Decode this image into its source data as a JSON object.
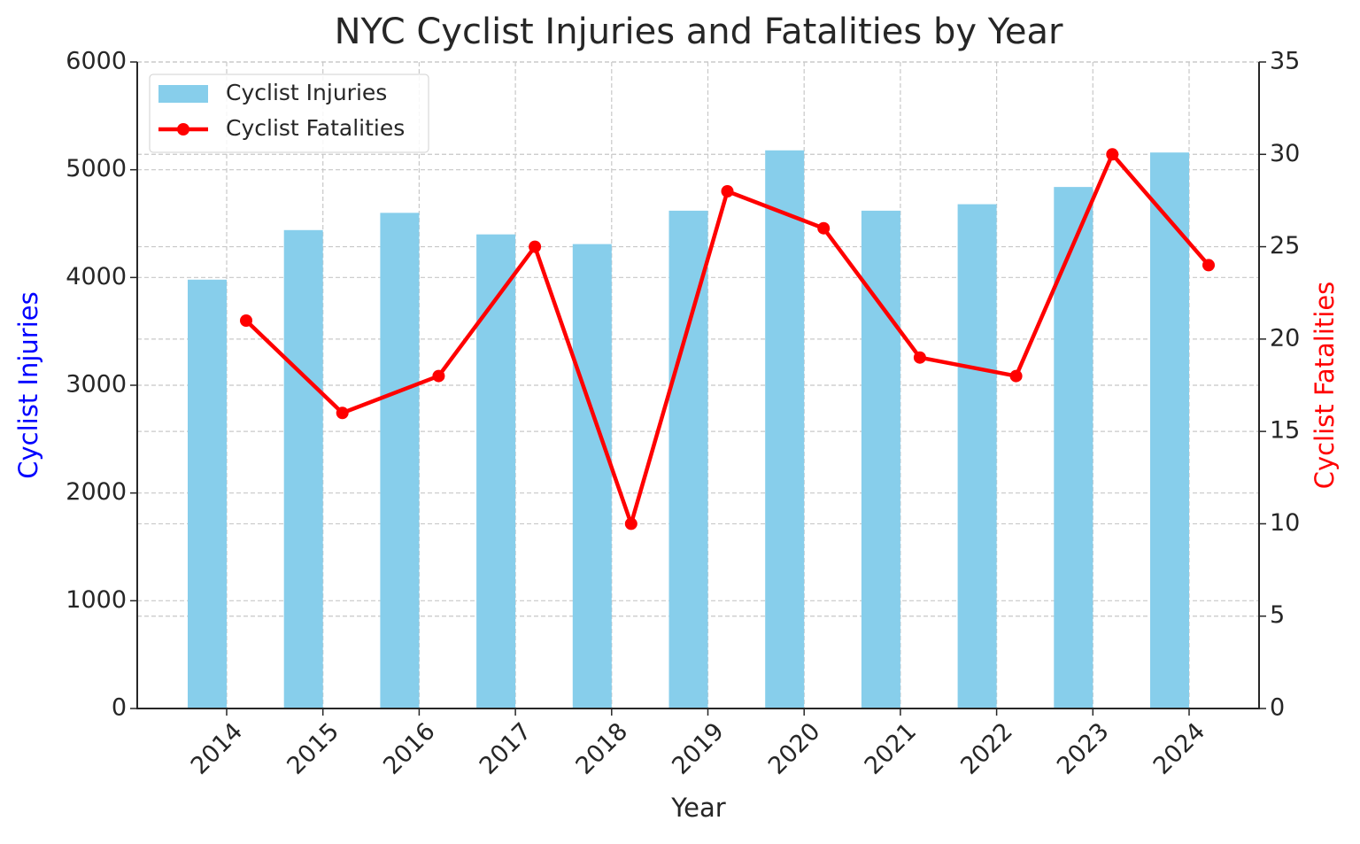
{
  "chart_data": {
    "type": "bar_line",
    "title": "NYC Cyclist Injuries and Fatalities by Year",
    "x_label": "Year",
    "y_label": "Cyclist Injuries",
    "y2_label": "Cyclist Fatalities",
    "categories": [
      "2014",
      "2015",
      "2016",
      "2017",
      "2018",
      "2019",
      "2020",
      "2021",
      "2022",
      "2023",
      "2024"
    ],
    "series": [
      {
        "name": "Cyclist Injuries",
        "type": "bar",
        "color": "#87ceeb",
        "axis": "y",
        "values": [
          3980,
          4440,
          4600,
          4400,
          4310,
          4620,
          5180,
          4620,
          4680,
          4840,
          5160
        ]
      },
      {
        "name": "Cyclist Fatalities",
        "type": "line",
        "color": "#ff0000",
        "axis": "y2",
        "values": [
          21,
          16,
          18,
          25,
          10,
          28,
          26,
          19,
          18,
          30,
          24
        ]
      }
    ],
    "ylim": [
      0,
      6000
    ],
    "yticks": [
      0,
      1000,
      2000,
      3000,
      4000,
      5000,
      6000
    ],
    "y2lim": [
      0,
      35
    ],
    "y2ticks": [
      0,
      5,
      10,
      15,
      20,
      25,
      30,
      35
    ],
    "y_label_color": "#0000ff",
    "y2_label_color": "#ff0000",
    "grid": true,
    "legend": "upper-left"
  }
}
